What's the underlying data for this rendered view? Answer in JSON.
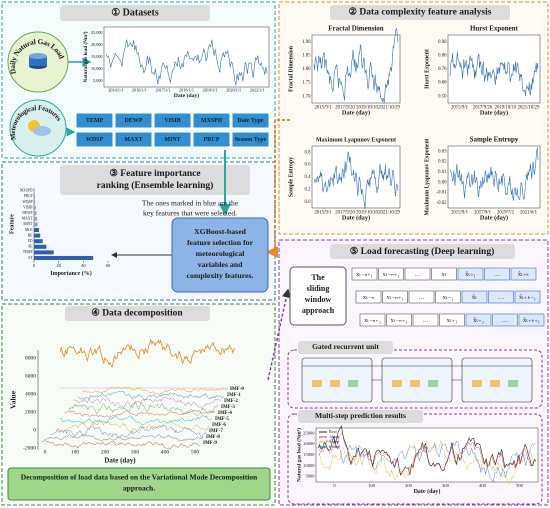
{
  "datasets": {
    "title": "① Datasets",
    "load_label": "Daily Natural Gas Load",
    "meteo_label": "Meteorological Features",
    "chart": {
      "ylabel": "Natural gas load (Nm³)",
      "xlabel": "Date (day)",
      "yticks": [
        "5,000",
        "10,000",
        "15,000",
        "20,000",
        "25,000"
      ],
      "xticks": [
        "2014/1/1",
        "2016/1/1",
        "2017/1/1",
        "2018/1/1",
        "2019/1/1",
        "2020/1/1",
        "2022/1/1"
      ]
    },
    "features": [
      [
        "TEMP",
        "DEWP",
        "VISIB",
        "MXSPD",
        "Date Type"
      ],
      [
        "WDSP",
        "MAXT",
        "MINT",
        "PRCP",
        "Season Type"
      ]
    ]
  },
  "complexity": {
    "title": "② Data complexity feature analysis",
    "plots": [
      {
        "title": "Fractal Dimension",
        "ylabel": "Fractal Dimension",
        "xlabel": "Date (day)",
        "yticks": [
          "1.70",
          "1.75",
          "1.80",
          "1.85",
          "1.90"
        ],
        "xticks": [
          "2015/9/1",
          "2017/9/20",
          "2019/10/10",
          "2021/10/29"
        ]
      },
      {
        "title": "Hurst Exponent",
        "ylabel": "Hurst Exponent",
        "xlabel": "Date (day)",
        "yticks": [
          "0.50",
          "0.60",
          "0.70",
          "0.80",
          "0.90"
        ],
        "xticks": [
          "2015/9/1",
          "2017/9/20",
          "2019/10/10",
          "2021/10/29"
        ]
      },
      {
        "title": "Maximum Lyapunov Exponent",
        "ylabel": "Sample Entropy",
        "xlabel": "Date (day)",
        "yticks": [
          "0.0",
          "0.2",
          "0.4",
          "0.6",
          "0.8"
        ],
        "xticks": [
          "2015/9/1",
          "2017/9/20",
          "2019/10/10",
          "2021/10/29"
        ]
      },
      {
        "title": "Sample Entropy",
        "ylabel": "Maximum Lyapunov Exponent",
        "xlabel": "Date (day)",
        "yticks": [
          "-0.02",
          "-0.01",
          "0.00",
          "0.01",
          "0.02",
          "0.03"
        ],
        "xticks": [
          "2015/9/1",
          "2017/9/1",
          "2019/7/2",
          "2021/6/1"
        ]
      }
    ]
  },
  "ranking": {
    "title_lines": [
      "③ Feature importance",
      "ranking (Ensemble learning)"
    ],
    "note_lines": [
      "The ones marked in blue are the",
      "key features that were selected."
    ],
    "xgb_lines": [
      "XGBoost-based",
      "feature selection for",
      "meteorological",
      "variables and",
      "complexity features."
    ],
    "chart": {
      "ylabel": "Feature",
      "xlabel": "Importance (%)",
      "features": [
        "MXSPD",
        "PRCP",
        "WDSP",
        "VISIB",
        "DEWP",
        "MAXT",
        "MINT",
        "MLE",
        "HE",
        "FD",
        "SE",
        "TEMP",
        "ST"
      ],
      "values": [
        0.5,
        0.8,
        1,
        1.5,
        2,
        2.5,
        3,
        4,
        5,
        7,
        10,
        16,
        48
      ],
      "colors": [
        "#9aa6b8",
        "#9aa6b8",
        "#9aa6b8",
        "#9aa6b8",
        "#9aa6b8",
        "#9aa6b8",
        "#9aa6b8",
        "#2f5fb3",
        "#2f5fb3",
        "#2f5fb3",
        "#2f5fb3",
        "#2f5fb3",
        "#2f5fb3"
      ],
      "xlim": [
        0,
        60
      ],
      "xticks": [
        0,
        20,
        40,
        60
      ]
    }
  },
  "decomposition": {
    "title": "④ Data decomposition",
    "ylabel": "Value",
    "xlabel": "Date (day)",
    "yticks": [
      "-2000",
      "0",
      "2000",
      "4000",
      "6000",
      "8000"
    ],
    "xticks": [
      "0",
      "100",
      "200",
      "300",
      "400",
      "500"
    ],
    "imfs": [
      "IMF-0",
      "IMF-1",
      "IMF-2",
      "IMF-3",
      "IMF-4",
      "IMF-5",
      "IMF-6",
      "IMF-7",
      "IMF-8",
      "IMF-9"
    ],
    "caption_lines": [
      "Decomposition of load data based on the Variational Mode Decomposition",
      "approach."
    ]
  },
  "forecasting": {
    "title": "⑤ Load forecasting (Deep learning)",
    "window_lines": [
      "The",
      "sliding",
      "window",
      "approach"
    ],
    "rows": [
      {
        "input": [
          "xₜ₋ₙ₊₁",
          "xₜ₋ₙ₊₂",
          "…",
          "xₜ"
        ],
        "output": [
          "x̂ₜ₊₁",
          "…",
          "x̂ₜ₊ₖ"
        ]
      },
      {
        "input": [
          "xₜ₋ₙ",
          "xₜ₋ₙ₊₁",
          "…",
          "xₜ₋₁"
        ],
        "output": [
          "x̂ₜ",
          "…",
          "x̂ₜ₊ₖ₋₁"
        ]
      },
      {
        "input": [
          "xₜ₋ₙ₊₂",
          "xₜ₋ₙ₊₃",
          "…",
          "xₜ₊₁"
        ],
        "output": [
          "x̂ₜ₊₂",
          "…",
          "x̂ₜ₊ₖ₊₁"
        ]
      }
    ],
    "gru_title": "Gated recurrent unit",
    "multi_title": "Multi-step prediction results",
    "chart": {
      "ylabel": "Natural gas load (Nm³)",
      "xlabel": "Date (day)",
      "yticks": [
        "5000",
        "10000",
        "15000",
        "20000",
        "25000"
      ],
      "xticks": [
        "0",
        "100",
        "200",
        "300",
        "400",
        "500"
      ],
      "legend": [
        {
          "name": "Real",
          "color": "#222222"
        },
        {
          "name": "1-step",
          "color": "#e03030"
        },
        {
          "name": "3-step",
          "color": "#e0b020"
        },
        {
          "name": "6-step",
          "color": "#3060d0"
        }
      ]
    }
  }
}
